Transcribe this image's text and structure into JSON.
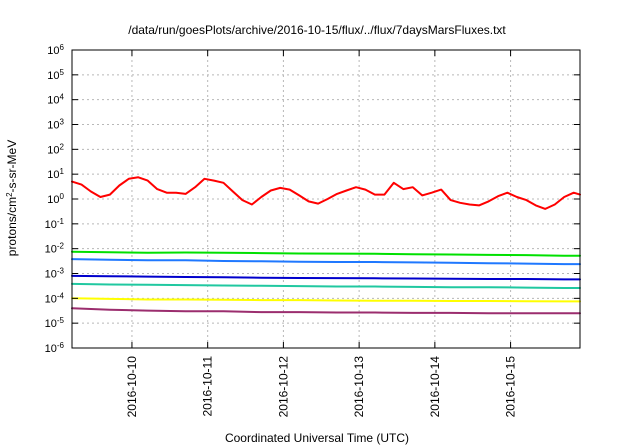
{
  "chart_data": {
    "type": "line",
    "title": "/data/run/goesPlots/archive/2016-10-15/flux/../flux/7daysMarsFluxes.txt",
    "xlabel": "Coordinated Universal Time (UTC)",
    "ylabel": {
      "base": "protons/cm",
      "sup": "2",
      "rest": "-s-sr-MeV"
    },
    "y_scale": "log",
    "ylim": [
      1e-06,
      1000000.0
    ],
    "xlim": [
      "2016-10-09 05:00",
      "2016-10-15 22:00"
    ],
    "grid": true,
    "y_ticks": [
      {
        "base": "10",
        "exp": "-6",
        "value": 1e-06
      },
      {
        "base": "10",
        "exp": "-5",
        "value": 1e-05
      },
      {
        "base": "10",
        "exp": "-4",
        "value": 0.0001
      },
      {
        "base": "10",
        "exp": "-3",
        "value": 0.001
      },
      {
        "base": "10",
        "exp": "-2",
        "value": 0.01
      },
      {
        "base": "10",
        "exp": "-1",
        "value": 0.1
      },
      {
        "base": "10",
        "exp": "0",
        "value": 1.0
      },
      {
        "base": "10",
        "exp": "1",
        "value": 10.0
      },
      {
        "base": "10",
        "exp": "2",
        "value": 100.0
      },
      {
        "base": "10",
        "exp": "3",
        "value": 1000.0
      },
      {
        "base": "10",
        "exp": "4",
        "value": 10000.0
      },
      {
        "base": "10",
        "exp": "5",
        "value": 100000.0
      },
      {
        "base": "10",
        "exp": "6",
        "value": 1000000.0
      }
    ],
    "x_ticks": [
      {
        "label": "2016-10-10",
        "value": "2016-10-10 00:00"
      },
      {
        "label": "2016-10-11",
        "value": "2016-10-11 00:00"
      },
      {
        "label": "2016-10-12",
        "value": "2016-10-12 00:00"
      },
      {
        "label": "2016-10-13",
        "value": "2016-10-13 00:00"
      },
      {
        "label": "2016-10-14",
        "value": "2016-10-14 00:00"
      },
      {
        "label": "2016-10-15",
        "value": "2016-10-15 00:00"
      }
    ],
    "series": [
      {
        "color": "#ff0000",
        "width": 2,
        "x": [
          "2016-10-09 05:00",
          "2016-10-09 08:00",
          "2016-10-09 11:00",
          "2016-10-09 14:00",
          "2016-10-09 17:00",
          "2016-10-09 20:00",
          "2016-10-09 23:00",
          "2016-10-10 02:00",
          "2016-10-10 05:00",
          "2016-10-10 08:00",
          "2016-10-10 11:00",
          "2016-10-10 14:00",
          "2016-10-10 17:00",
          "2016-10-10 20:00",
          "2016-10-10 23:00",
          "2016-10-11 02:00",
          "2016-10-11 05:00",
          "2016-10-11 08:00",
          "2016-10-11 11:00",
          "2016-10-11 14:00",
          "2016-10-11 17:00",
          "2016-10-11 20:00",
          "2016-10-11 23:00",
          "2016-10-12 02:00",
          "2016-10-12 05:00",
          "2016-10-12 08:00",
          "2016-10-12 11:00",
          "2016-10-12 14:00",
          "2016-10-12 17:00",
          "2016-10-12 20:00",
          "2016-10-12 23:00",
          "2016-10-13 02:00",
          "2016-10-13 05:00",
          "2016-10-13 08:00",
          "2016-10-13 11:00",
          "2016-10-13 14:00",
          "2016-10-13 17:00",
          "2016-10-13 20:00",
          "2016-10-13 23:00",
          "2016-10-14 02:00",
          "2016-10-14 05:00",
          "2016-10-14 08:00",
          "2016-10-14 11:00",
          "2016-10-14 14:00",
          "2016-10-14 17:00",
          "2016-10-14 20:00",
          "2016-10-14 23:00",
          "2016-10-15 02:00",
          "2016-10-15 05:00",
          "2016-10-15 08:00",
          "2016-10-15 11:00",
          "2016-10-15 14:00",
          "2016-10-15 17:00",
          "2016-10-15 20:00",
          "2016-10-15 22:00"
        ],
        "values": [
          5.0,
          3.8,
          2.0,
          1.2,
          1.5,
          3.5,
          6.5,
          7.5,
          5.5,
          2.5,
          1.8,
          1.8,
          1.6,
          3.0,
          6.5,
          5.5,
          4.5,
          2.0,
          0.9,
          0.6,
          1.2,
          2.2,
          2.8,
          2.4,
          1.4,
          0.8,
          0.65,
          1.0,
          1.6,
          2.2,
          3.0,
          2.4,
          1.5,
          1.5,
          4.5,
          2.5,
          3.0,
          1.4,
          1.8,
          2.4,
          0.9,
          0.7,
          0.6,
          0.55,
          0.8,
          1.3,
          1.8,
          1.2,
          0.9,
          0.55,
          0.4,
          0.6,
          1.2,
          1.8,
          1.5
        ]
      },
      {
        "color": "#00e000",
        "width": 2,
        "x": [
          "2016-10-09 05:00",
          "2016-10-09 17:00",
          "2016-10-10 05:00",
          "2016-10-10 17:00",
          "2016-10-11 05:00",
          "2016-10-11 17:00",
          "2016-10-12 05:00",
          "2016-10-12 17:00",
          "2016-10-13 05:00",
          "2016-10-13 17:00",
          "2016-10-14 05:00",
          "2016-10-14 17:00",
          "2016-10-15 05:00",
          "2016-10-15 17:00",
          "2016-10-15 22:00"
        ],
        "values": [
          0.0075,
          0.0072,
          0.0068,
          0.007,
          0.0068,
          0.0066,
          0.0064,
          0.0063,
          0.0062,
          0.006,
          0.0058,
          0.0056,
          0.0055,
          0.0052,
          0.0052
        ]
      },
      {
        "color": "#1f78ff",
        "width": 2,
        "x": [
          "2016-10-09 05:00",
          "2016-10-09 17:00",
          "2016-10-10 05:00",
          "2016-10-10 17:00",
          "2016-10-11 05:00",
          "2016-10-11 17:00",
          "2016-10-12 05:00",
          "2016-10-12 17:00",
          "2016-10-13 05:00",
          "2016-10-13 17:00",
          "2016-10-14 05:00",
          "2016-10-14 17:00",
          "2016-10-15 05:00",
          "2016-10-15 17:00",
          "2016-10-15 22:00"
        ],
        "values": [
          0.0038,
          0.0036,
          0.0034,
          0.0034,
          0.0032,
          0.0031,
          0.003,
          0.0029,
          0.0029,
          0.0028,
          0.0027,
          0.0026,
          0.0025,
          0.0024,
          0.0024
        ]
      },
      {
        "color": "#0000cc",
        "width": 2,
        "x": [
          "2016-10-09 05:00",
          "2016-10-09 17:00",
          "2016-10-10 05:00",
          "2016-10-10 17:00",
          "2016-10-11 05:00",
          "2016-10-11 17:00",
          "2016-10-12 05:00",
          "2016-10-12 17:00",
          "2016-10-13 05:00",
          "2016-10-13 17:00",
          "2016-10-14 05:00",
          "2016-10-14 17:00",
          "2016-10-15 05:00",
          "2016-10-15 17:00",
          "2016-10-15 22:00"
        ],
        "values": [
          0.0008,
          0.00078,
          0.00075,
          0.00072,
          0.0007,
          0.00068,
          0.00066,
          0.00065,
          0.00064,
          0.00063,
          0.00062,
          0.0006,
          0.0006,
          0.00058,
          0.00058
        ]
      },
      {
        "color": "#20c8a0",
        "width": 2,
        "x": [
          "2016-10-09 05:00",
          "2016-10-09 17:00",
          "2016-10-10 05:00",
          "2016-10-10 17:00",
          "2016-10-11 05:00",
          "2016-10-11 17:00",
          "2016-10-12 05:00",
          "2016-10-12 17:00",
          "2016-10-13 05:00",
          "2016-10-13 17:00",
          "2016-10-14 05:00",
          "2016-10-14 17:00",
          "2016-10-15 05:00",
          "2016-10-15 17:00",
          "2016-10-15 22:00"
        ],
        "values": [
          0.00038,
          0.00036,
          0.00035,
          0.00034,
          0.00033,
          0.00032,
          0.00031,
          0.0003,
          0.0003,
          0.00029,
          0.00028,
          0.00028,
          0.00027,
          0.00026,
          0.00026
        ]
      },
      {
        "color": "#ffff00",
        "width": 2,
        "x": [
          "2016-10-09 05:00",
          "2016-10-09 17:00",
          "2016-10-10 05:00",
          "2016-10-10 17:00",
          "2016-10-11 05:00",
          "2016-10-11 17:00",
          "2016-10-12 05:00",
          "2016-10-12 17:00",
          "2016-10-13 05:00",
          "2016-10-13 17:00",
          "2016-10-14 05:00",
          "2016-10-14 17:00",
          "2016-10-15 05:00",
          "2016-10-15 17:00",
          "2016-10-15 22:00"
        ],
        "values": [
          0.0001,
          9.5e-05,
          9e-05,
          9e-05,
          8.8e-05,
          8.5e-05,
          8.5e-05,
          8.2e-05,
          8e-05,
          8e-05,
          7.8e-05,
          7.8e-05,
          7.6e-05,
          7.5e-05,
          7.5e-05
        ]
      },
      {
        "color": "#9b2d6e",
        "width": 2,
        "x": [
          "2016-10-09 05:00",
          "2016-10-09 17:00",
          "2016-10-10 05:00",
          "2016-10-10 17:00",
          "2016-10-11 05:00",
          "2016-10-11 17:00",
          "2016-10-12 05:00",
          "2016-10-12 17:00",
          "2016-10-13 05:00",
          "2016-10-13 17:00",
          "2016-10-14 05:00",
          "2016-10-14 17:00",
          "2016-10-15 05:00",
          "2016-10-15 17:00",
          "2016-10-15 22:00"
        ],
        "values": [
          4e-05,
          3.5e-05,
          3.2e-05,
          3e-05,
          3e-05,
          2.8e-05,
          2.8e-05,
          2.7e-05,
          2.7e-05,
          2.6e-05,
          2.6e-05,
          2.5e-05,
          2.5e-05,
          2.5e-05,
          2.5e-05
        ]
      }
    ]
  }
}
